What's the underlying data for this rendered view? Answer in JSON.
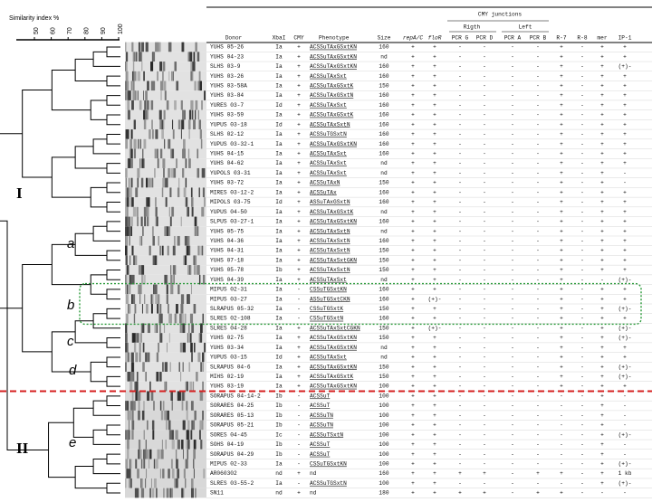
{
  "figure": {
    "axis_title": "Similarity index %",
    "axis_ticks": [
      50,
      60,
      70,
      80,
      90,
      100
    ],
    "cluster_labels": [
      "I",
      "II"
    ],
    "subcluster_labels": [
      "a",
      "b",
      "c",
      "d",
      "e"
    ]
  },
  "table": {
    "group_header": "CMY junctions",
    "subgroup_headers": [
      "Rigth",
      "Left"
    ],
    "columns": [
      "Donor",
      "XbaI",
      "CMY",
      "Phenotype",
      "Size",
      "repA/C",
      "floR",
      "PCR G",
      "PCR D",
      "PCR A",
      "PCR B",
      "R-7",
      "R-8",
      "mer",
      "IP-1"
    ],
    "rows": [
      [
        "YUHS 05-26",
        "Ia",
        "+",
        "ACSSuTAxGSxtKN",
        "160",
        "+",
        "+",
        "-",
        "-",
        "-",
        "-",
        "+",
        "-",
        "+",
        "+"
      ],
      [
        "YUHS 04-23",
        "Ia",
        "+",
        "ACSSuTAxGSxtKN",
        "nd",
        "+",
        "+",
        "-",
        "-",
        "-",
        "-",
        "+",
        "-",
        "+",
        "+"
      ],
      [
        "SLHS 03-9",
        "Ia",
        "+",
        "ACSSuTAxGSxtKN",
        "160",
        "+",
        "+",
        "-",
        "-",
        "-",
        "-",
        "+",
        "-",
        "+",
        "(+)-"
      ],
      [
        "YUHS 03-26",
        "Ia",
        "+",
        "ACSSuTAxSxt",
        "160",
        "+",
        "+",
        "-",
        "-",
        "-",
        "-",
        "+",
        "-",
        "+",
        "+"
      ],
      [
        "YUHS 03-58A",
        "Ia",
        "+",
        "ACSSuTAxGSxtK",
        "150",
        "+",
        "+",
        "-",
        "-",
        "-",
        "-",
        "+",
        "-",
        "+",
        "+"
      ],
      [
        "YUHS 03-84",
        "Ia",
        "+",
        "ACSSuTAxGSxtN",
        "160",
        "+",
        "+",
        "-",
        "-",
        "-",
        "-",
        "+",
        "-",
        "+",
        "+"
      ],
      [
        "YURES 03-7",
        "Id",
        "+",
        "ACSSuTAxSxt",
        "160",
        "+",
        "+",
        "-",
        "-",
        "-",
        "-",
        "+",
        "-",
        "+",
        "+"
      ],
      [
        "YUHS 03-59",
        "Ia",
        "+",
        "ACSSuTAxGSxtK",
        "160",
        "+",
        "+",
        "-",
        "-",
        "-",
        "-",
        "+",
        "-",
        "+",
        "+"
      ],
      [
        "YUPUS 03-18",
        "Id",
        "+",
        "ACSSuTAxSxtN",
        "160",
        "+",
        "+",
        "-",
        "-",
        "-",
        "-",
        "+",
        "-",
        "+",
        "+"
      ],
      [
        "SLHS 02-12",
        "Ia",
        "+",
        "ACSSuTGSxtN",
        "160",
        "+",
        "+",
        "-",
        "-",
        "-",
        "-",
        "+",
        "-",
        "+",
        "+"
      ],
      [
        "YUPUS 03-32-1",
        "Ia",
        "+",
        "ACSSuTAxGSxtKN",
        "160",
        "+",
        "+",
        "-",
        "-",
        "-",
        "-",
        "+",
        "-",
        "+",
        "+"
      ],
      [
        "YUHS 04-15",
        "Ia",
        "+",
        "ACSSuTAxSxt",
        "160",
        "+",
        "+",
        "-",
        "-",
        "-",
        "-",
        "+",
        "-",
        "+",
        "+"
      ],
      [
        "YUHS 04-62",
        "Ia",
        "+",
        "ACSSuTAxSxt",
        "nd",
        "+",
        "+",
        "-",
        "-",
        "-",
        "-",
        "+",
        "-",
        "+",
        "+"
      ],
      [
        "YUPOLS 03-31",
        "Ia",
        "+",
        "ACSSuTAxSxt",
        "nd",
        "+",
        "+",
        "-",
        "-",
        "-",
        "-",
        "+",
        "-",
        "+",
        "-"
      ],
      [
        "YUHS 03-72",
        "Ia",
        "+",
        "ACSSuTAxN",
        "150",
        "+",
        "+",
        "-",
        "-",
        "-",
        "-",
        "+",
        "-",
        "+",
        "-"
      ],
      [
        "MIRES 03-12-2",
        "Ia",
        "+",
        "ACSSuTAx",
        "160",
        "+",
        "+",
        "-",
        "-",
        "-",
        "-",
        "+",
        "-",
        "+",
        "+"
      ],
      [
        "MIPOLS 03-75",
        "Id",
        "+",
        "ASSuTAxGSxtN",
        "160",
        "+",
        "+",
        "-",
        "-",
        "-",
        "-",
        "+",
        "-",
        "+",
        "+"
      ],
      [
        "YUPUS 04-50",
        "Ia",
        "+",
        "ACSSuTAxGSxtK",
        "nd",
        "+",
        "+",
        "-",
        "-",
        "-",
        "-",
        "+",
        "-",
        "+",
        "+"
      ],
      [
        "SLPUS 03-27-1",
        "Ia",
        "+",
        "ACSSuTAxGSxtKN",
        "160",
        "+",
        "+",
        "-",
        "-",
        "-",
        "-",
        "+",
        "-",
        "+",
        "+"
      ],
      [
        "YUHS 05-75",
        "Ia",
        "+",
        "ACSSuTAxSxtN",
        "nd",
        "+",
        "+",
        "-",
        "-",
        "-",
        "-",
        "+",
        "-",
        "+",
        "+"
      ],
      [
        "YUHS 04-36",
        "Ia",
        "+",
        "ACSSuTAxSxtN",
        "160",
        "+",
        "+",
        "-",
        "-",
        "-",
        "-",
        "+",
        "-",
        "+",
        "+"
      ],
      [
        "YUHS 04-31",
        "Ia",
        "+",
        "ACSSuTAxSxtN",
        "150",
        "+",
        "+",
        "-",
        "-",
        "-",
        "-",
        "+",
        "-",
        "+",
        "+"
      ],
      [
        "YUHS 07-18",
        "Ia",
        "+",
        "ACSSuTAxSxtGKN",
        "150",
        "+",
        "+",
        "-",
        "-",
        "-",
        "-",
        "+",
        "-",
        "+",
        "+"
      ],
      [
        "YUHS 05-78",
        "Ib",
        "+",
        "ACSSuTAxSxtN",
        "150",
        "+",
        "+",
        "-",
        "-",
        "-",
        "-",
        "+",
        "-",
        "+",
        "+"
      ],
      [
        "YUHS 04-39",
        "Ia",
        "+",
        "ACSSuTAxSxt",
        "nd",
        "+",
        "+",
        "-",
        "-",
        "-",
        "-",
        "+",
        "-",
        "-",
        "(+)-"
      ],
      [
        "MIPUS 02-31",
        "Ia",
        "-",
        "CSSuTGSxtKN",
        "160",
        "+",
        "+",
        "-",
        "-",
        "-",
        "-",
        "+",
        "-",
        "+",
        "+"
      ],
      [
        "MIPUS 03-27",
        "Ia",
        "-",
        "ASSuTGSxtCKN",
        "160",
        "+",
        "(+)-",
        "-",
        "-",
        "-",
        "-",
        "+",
        "-",
        "+",
        "+"
      ],
      [
        "SLRAPUS 05-32",
        "Ia",
        "-",
        "CSSuTGSxtK",
        "150",
        "+",
        "+",
        "-",
        "-",
        "-",
        "-",
        "+",
        "-",
        "+",
        "(+)-"
      ],
      [
        "SLRES 02-108",
        "Ia",
        "-",
        "CSSuTGSxtN",
        "160",
        "+",
        "+",
        "-",
        "-",
        "-",
        "-",
        "+",
        "-",
        "+",
        "+"
      ],
      [
        "SLRES 04-28",
        "Ia",
        "+",
        "ACSSuTAxSxtCGKN",
        "150",
        "+",
        "(+)-",
        "-",
        "-",
        "-",
        "-",
        "+",
        "-",
        "+",
        "(+)-"
      ],
      [
        "YUHS 02-75",
        "Ia",
        "+",
        "ACSSuTAxGSxtKN",
        "150",
        "+",
        "+",
        "-",
        "-",
        "-",
        "-",
        "+",
        "-",
        "+",
        "(+)-"
      ],
      [
        "YUHS 03-34",
        "Ia",
        "+",
        "ACSSuTAxGSxtKN",
        "nd",
        "+",
        "+",
        "-",
        "-",
        "-",
        "-",
        "+",
        "-",
        "+",
        "+"
      ],
      [
        "YUPUS 03-15",
        "Id",
        "+",
        "ACSSuTAxSxt",
        "nd",
        "+",
        "+",
        "-",
        "-",
        "-",
        "-",
        "+",
        "-",
        "+",
        "+"
      ],
      [
        "SLRAPUS 04-6",
        "Ia",
        "+",
        "ACSSuTAxGSxtKN",
        "150",
        "+",
        "+",
        "-",
        "-",
        "-",
        "-",
        "+",
        "-",
        "+",
        "(+)-"
      ],
      [
        "MIHS 02-19",
        "Ia",
        "+",
        "ACSSuTAxGSxtK",
        "150",
        "+",
        "+",
        "-",
        "-",
        "-",
        "-",
        "+",
        "-",
        "+",
        "(+)-"
      ],
      [
        "YUHS 03-19",
        "Ia",
        "+",
        "ACSSuTAxGSxtKN",
        "100",
        "+",
        "+",
        "-",
        "-",
        "-",
        "-",
        "+",
        "-",
        "+",
        "+"
      ],
      [
        "SORAPUS 04-14-2",
        "Ib",
        "-",
        "ACSSuT",
        "100",
        "+",
        "+",
        "-",
        "-",
        "-",
        "-",
        "-",
        "-",
        "+",
        "-"
      ],
      [
        "SORARES 04-25",
        "Ib",
        "-",
        "ACSSuT",
        "100",
        "+",
        "+",
        "-",
        "-",
        "-",
        "-",
        "-",
        "-",
        "+",
        "-"
      ],
      [
        "SORARES 05-13",
        "Ib",
        "-",
        "ACSSuTN",
        "100",
        "+",
        "+",
        "-",
        "-",
        "-",
        "-",
        "-",
        "-",
        "+",
        "-"
      ],
      [
        "SORAPUS 05-21",
        "Ib",
        "-",
        "ACSSuTN",
        "100",
        "+",
        "+",
        "-",
        "-",
        "-",
        "-",
        "-",
        "-",
        "+",
        "-"
      ],
      [
        "SORES 04-45",
        "Ic",
        "-",
        "ACSSuTSxtN",
        "100",
        "+",
        "+",
        "-",
        "-",
        "-",
        "-",
        "-",
        "-",
        "+",
        "(+)-"
      ],
      [
        "SOHS 04-19",
        "Ib",
        "-",
        "ACSSuT",
        "100",
        "+",
        "+",
        "-",
        "-",
        "-",
        "-",
        "-",
        "-",
        "+",
        "-"
      ],
      [
        "SORAPUS 04-29",
        "Ib",
        "-",
        "ACSSuT",
        "100",
        "+",
        "+",
        "-",
        "-",
        "-",
        "-",
        "-",
        "-",
        "+",
        "-"
      ],
      [
        "MIPUS 02-33",
        "Ia",
        "-",
        "CSSuTGSxtKN",
        "100",
        "+",
        "+",
        "-",
        "-",
        "-",
        "-",
        "-",
        "-",
        "+",
        "(+)-"
      ],
      [
        "AR060302",
        "nd",
        "+",
        "nd",
        "160",
        "+",
        "+",
        "+",
        "+",
        "-",
        "+",
        "+",
        "-",
        "+",
        "1 kb"
      ],
      [
        "SLRES 03-55-2",
        "Ia",
        "-",
        "ACSSuTGSxtN",
        "100",
        "+",
        "+",
        "-",
        "-",
        "-",
        "-",
        "-",
        "-",
        "+",
        "(+)-"
      ],
      [
        "SN11",
        "nd",
        "+",
        "nd",
        "180",
        "+",
        "+",
        "+",
        "+",
        "-",
        "+",
        "+",
        "-",
        "-",
        "-"
      ]
    ]
  }
}
